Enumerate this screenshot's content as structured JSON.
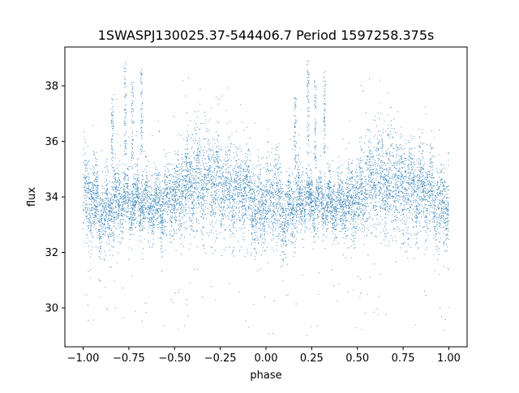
{
  "chart_data": {
    "type": "scatter",
    "title": "1SWASPJ130025.37-544406.7 Period 1597258.375s",
    "xlabel": "phase",
    "ylabel": "flux",
    "xlim": [
      -1.1,
      1.1
    ],
    "ylim": [
      28.6,
      39.4
    ],
    "x_ticks": [
      -1.0,
      -0.75,
      -0.5,
      -0.25,
      0.0,
      0.25,
      0.5,
      0.75,
      1.0
    ],
    "x_tick_labels": [
      "−1.00",
      "−0.75",
      "−0.50",
      "−0.25",
      "0.00",
      "0.25",
      "0.50",
      "0.75",
      "1.00"
    ],
    "y_ticks": [
      30,
      32,
      34,
      36,
      38
    ],
    "y_tick_labels": [
      "30",
      "32",
      "34",
      "36",
      "38"
    ],
    "grid": false,
    "legend": "none",
    "point_color": "#1f77b4",
    "series": [
      {
        "values_description_free": true,
        "envelope": [
          {
            "phase": -1.0,
            "mean": 33.9,
            "spread": 0.9
          },
          {
            "phase": -0.95,
            "mean": 34.0,
            "spread": 0.9
          },
          {
            "phase": -0.9,
            "mean": 33.3,
            "spread": 0.8
          },
          {
            "phase": -0.8,
            "mean": 33.9,
            "spread": 0.7
          },
          {
            "phase": -0.75,
            "mean": 33.8,
            "spread": 0.6
          },
          {
            "phase": -0.7,
            "mean": 33.8,
            "spread": 0.6
          },
          {
            "phase": -0.6,
            "mean": 33.7,
            "spread": 0.6
          },
          {
            "phase": -0.55,
            "mean": 33.8,
            "spread": 0.8
          },
          {
            "phase": -0.5,
            "mean": 34.0,
            "spread": 0.8
          },
          {
            "phase": -0.4,
            "mean": 34.6,
            "spread": 1.0
          },
          {
            "phase": -0.3,
            "mean": 34.6,
            "spread": 1.1
          },
          {
            "phase": -0.25,
            "mean": 34.3,
            "spread": 1.0
          },
          {
            "phase": -0.2,
            "mean": 34.3,
            "spread": 0.9
          },
          {
            "phase": -0.1,
            "mean": 34.2,
            "spread": 0.9
          },
          {
            "phase": -0.05,
            "mean": 33.5,
            "spread": 0.9
          },
          {
            "phase": 0.0,
            "mean": 33.9,
            "spread": 0.9
          },
          {
            "phase": 0.05,
            "mean": 34.0,
            "spread": 0.9
          },
          {
            "phase": 0.1,
            "mean": 33.3,
            "spread": 0.8
          },
          {
            "phase": 0.2,
            "mean": 33.9,
            "spread": 0.7
          },
          {
            "phase": 0.25,
            "mean": 33.8,
            "spread": 0.6
          },
          {
            "phase": 0.3,
            "mean": 33.8,
            "spread": 0.6
          },
          {
            "phase": 0.4,
            "mean": 33.7,
            "spread": 0.6
          },
          {
            "phase": 0.45,
            "mean": 33.8,
            "spread": 0.8
          },
          {
            "phase": 0.5,
            "mean": 34.0,
            "spread": 0.8
          },
          {
            "phase": 0.6,
            "mean": 34.6,
            "spread": 1.0
          },
          {
            "phase": 0.7,
            "mean": 34.6,
            "spread": 1.1
          },
          {
            "phase": 0.75,
            "mean": 34.3,
            "spread": 1.0
          },
          {
            "phase": 0.8,
            "mean": 34.3,
            "spread": 0.9
          },
          {
            "phase": 0.9,
            "mean": 34.2,
            "spread": 0.9
          },
          {
            "phase": 0.95,
            "mean": 33.5,
            "spread": 0.9
          },
          {
            "phase": 1.0,
            "mean": 33.9,
            "spread": 0.9
          }
        ],
        "spikes": [
          {
            "phase": -0.84,
            "low": 35.0,
            "high": 37.6
          },
          {
            "phase": -0.77,
            "low": 35.5,
            "high": 38.9
          },
          {
            "phase": -0.73,
            "low": 35.0,
            "high": 38.2
          },
          {
            "phase": -0.68,
            "low": 35.5,
            "high": 38.6
          },
          {
            "phase": 0.16,
            "low": 35.0,
            "high": 37.6
          },
          {
            "phase": 0.23,
            "low": 35.5,
            "high": 38.9
          },
          {
            "phase": 0.27,
            "low": 35.0,
            "high": 38.2
          },
          {
            "phase": 0.32,
            "low": 35.5,
            "high": 38.6
          }
        ]
      }
    ]
  }
}
